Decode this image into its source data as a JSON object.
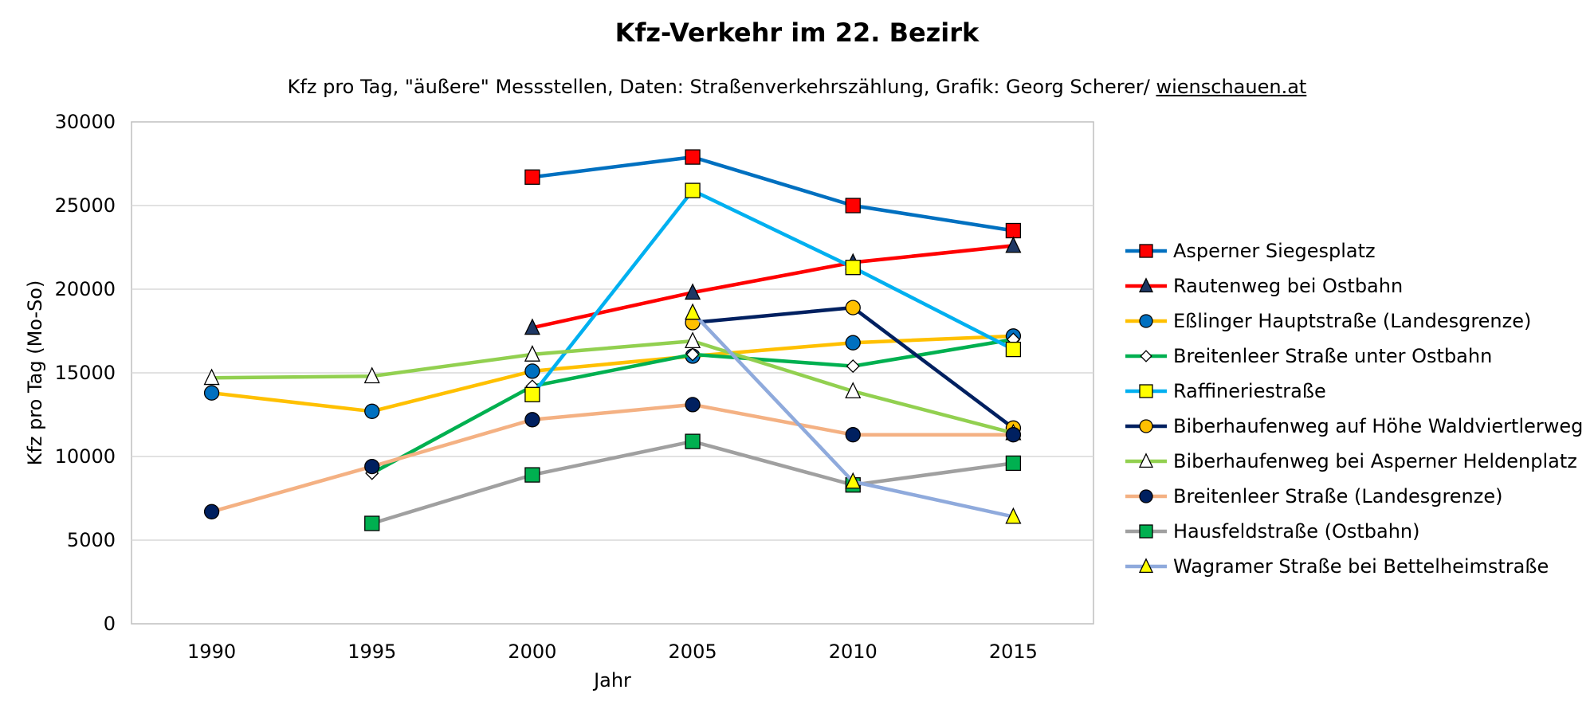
{
  "chart_data": {
    "type": "line",
    "title": "Kfz-Verkehr im 22. Bezirk",
    "subtitle": "Kfz pro Tag, \"äußere\" Messstellen, Daten: Straßenverkehrszählung, Grafik: Georg Scherer/ ",
    "subtitle_link": "wienschauen.at",
    "xlabel": "Jahr",
    "ylabel": "Kfz pro Tag (Mo-So)",
    "x": [
      1990,
      1995,
      2000,
      2005,
      2010,
      2015
    ],
    "xlim": [
      1987.5,
      2017.5
    ],
    "ylim": [
      0,
      30000
    ],
    "yticks": [
      0,
      5000,
      10000,
      15000,
      20000,
      25000,
      30000
    ],
    "grid": "horizontal",
    "legend_position": "right",
    "series": [
      {
        "name": "Asperner Siegesplatz",
        "color": "#0070C0",
        "marker": "square",
        "marker_fill": "#FF0000",
        "values": [
          null,
          null,
          26700,
          27900,
          25000,
          23500
        ]
      },
      {
        "name": "Rautenweg bei Ostbahn",
        "color": "#FF0000",
        "marker": "triangle",
        "marker_fill": "#1F3864",
        "values": [
          null,
          null,
          17700,
          19800,
          21600,
          22600
        ]
      },
      {
        "name": "Eßlinger Hauptstraße (Landesgrenze)",
        "color": "#FFC000",
        "marker": "circle",
        "marker_fill": "#0070C0",
        "values": [
          13800,
          12700,
          15100,
          16000,
          16800,
          17200
        ]
      },
      {
        "name": "Breitenleer Straße unter Ostbahn",
        "color": "#00B050",
        "marker": "diamond",
        "marker_fill": "#FFFFFF",
        "values": [
          null,
          9000,
          14200,
          16100,
          15400,
          17000
        ]
      },
      {
        "name": "Raffineriestraße",
        "color": "#00B0F0",
        "marker": "square",
        "marker_fill": "#FFFF00",
        "values": [
          null,
          null,
          13700,
          25900,
          21300,
          16400
        ]
      },
      {
        "name": "Biberhaufenweg auf Höhe Waldviertlerweg",
        "color": "#002060",
        "marker": "circle",
        "marker_fill": "#FFC000",
        "values": [
          null,
          null,
          null,
          18000,
          18900,
          11700
        ]
      },
      {
        "name": "Biberhaufenweg bei Asperner Heldenplatz",
        "color": "#92D050",
        "marker": "triangle",
        "marker_fill": "#FFFFFF",
        "values": [
          14700,
          14800,
          16100,
          16900,
          13900,
          11400
        ]
      },
      {
        "name": "Breitenleer Straße (Landesgrenze)",
        "color": "#F4B183",
        "marker": "circle",
        "marker_fill": "#002060",
        "values": [
          6700,
          9400,
          12200,
          13100,
          11300,
          11300
        ]
      },
      {
        "name": "Hausfeldstraße (Ostbahn)",
        "color": "#A0A0A0",
        "marker": "square",
        "marker_fill": "#00B050",
        "values": [
          null,
          6000,
          8900,
          10900,
          8300,
          9600
        ]
      },
      {
        "name": "Wagramer Straße bei Bettelheimstraße",
        "color": "#8FAADC",
        "marker": "triangle",
        "marker_fill": "#FFFF00",
        "values": [
          null,
          null,
          null,
          18600,
          8500,
          6400
        ]
      }
    ]
  }
}
